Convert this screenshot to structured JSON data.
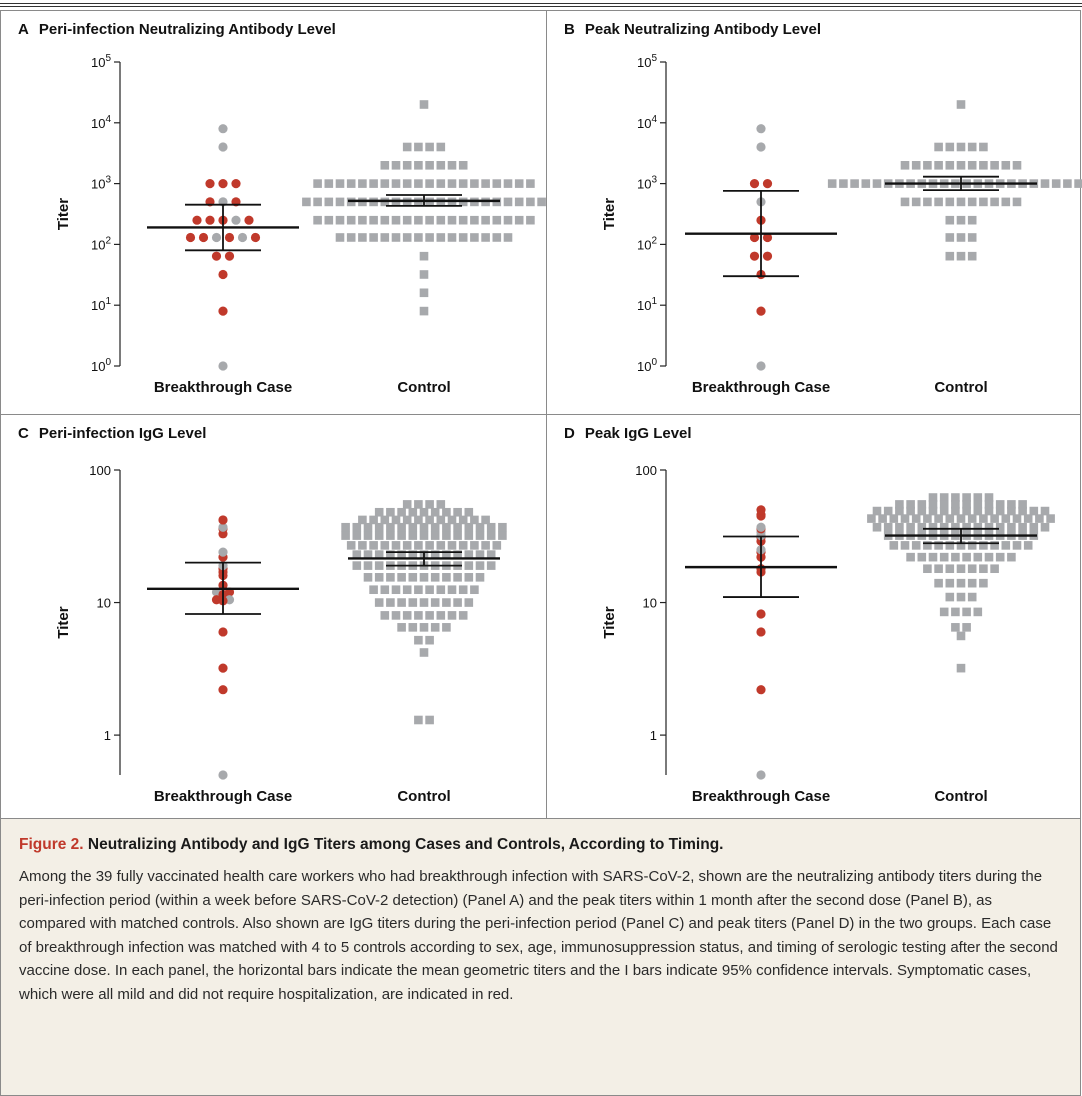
{
  "colors": {
    "symptomatic": "#c0392b",
    "asymptomatic": "#a7a9ac",
    "control": "#a7a9ac",
    "caption_bg": "#f3efe6",
    "figure_number": "#c0392b"
  },
  "chart_data": [
    {
      "panel": "A",
      "title": "Peri-infection Neutralizing Antibody Level",
      "type": "scatter",
      "ylabel": "Titer",
      "yscale": "log",
      "ylim": [
        1,
        100000
      ],
      "yticks": [
        {
          "value": 1,
          "base": "10",
          "exp": "0"
        },
        {
          "value": 10,
          "base": "10",
          "exp": "1"
        },
        {
          "value": 100,
          "base": "10",
          "exp": "2"
        },
        {
          "value": 1000,
          "base": "10",
          "exp": "3"
        },
        {
          "value": 10000,
          "base": "10",
          "exp": "4"
        },
        {
          "value": 100000,
          "base": "10",
          "exp": "5"
        }
      ],
      "categories": [
        "Breakthrough Case",
        "Control"
      ],
      "cases": [
        {
          "y": 8000,
          "sym": false
        },
        {
          "y": 4000,
          "sym": false
        },
        {
          "y": 1000,
          "sym": true
        },
        {
          "y": 1000,
          "sym": true
        },
        {
          "y": 1000,
          "sym": true
        },
        {
          "y": 500,
          "sym": true
        },
        {
          "y": 500,
          "sym": false
        },
        {
          "y": 500,
          "sym": true
        },
        {
          "y": 250,
          "sym": true
        },
        {
          "y": 250,
          "sym": true
        },
        {
          "y": 250,
          "sym": true
        },
        {
          "y": 250,
          "sym": false
        },
        {
          "y": 250,
          "sym": true
        },
        {
          "y": 130,
          "sym": true
        },
        {
          "y": 130,
          "sym": true
        },
        {
          "y": 130,
          "sym": false
        },
        {
          "y": 130,
          "sym": true
        },
        {
          "y": 130,
          "sym": false
        },
        {
          "y": 130,
          "sym": true
        },
        {
          "y": 64,
          "sym": true
        },
        {
          "y": 64,
          "sym": true
        },
        {
          "y": 32,
          "sym": true
        },
        {
          "y": 8,
          "sym": true
        },
        {
          "y": 1,
          "sym": false
        }
      ],
      "controls": [
        {
          "y": 20000,
          "n": 1
        },
        {
          "y": 4000,
          "n": 4
        },
        {
          "y": 2000,
          "n": 8
        },
        {
          "y": 1000,
          "n": 20
        },
        {
          "y": 500,
          "n": 22
        },
        {
          "y": 250,
          "n": 20
        },
        {
          "y": 130,
          "n": 16
        },
        {
          "y": 64,
          "n": 1
        },
        {
          "y": 32,
          "n": 1
        },
        {
          "y": 16,
          "n": 1
        },
        {
          "y": 8,
          "n": 1
        }
      ],
      "case_gmt": {
        "mean": 190,
        "lo": 80,
        "hi": 450
      },
      "control_gmt": {
        "mean": 520,
        "lo": 430,
        "hi": 650
      }
    },
    {
      "panel": "B",
      "title": "Peak Neutralizing Antibody Level",
      "type": "scatter",
      "ylabel": "Titer",
      "yscale": "log",
      "ylim": [
        1,
        100000
      ],
      "yticks": [
        {
          "value": 1,
          "base": "10",
          "exp": "0"
        },
        {
          "value": 10,
          "base": "10",
          "exp": "1"
        },
        {
          "value": 100,
          "base": "10",
          "exp": "2"
        },
        {
          "value": 1000,
          "base": "10",
          "exp": "3"
        },
        {
          "value": 10000,
          "base": "10",
          "exp": "4"
        },
        {
          "value": 100000,
          "base": "10",
          "exp": "5"
        }
      ],
      "categories": [
        "Breakthrough Case",
        "Control"
      ],
      "cases": [
        {
          "y": 8000,
          "sym": false
        },
        {
          "y": 4000,
          "sym": false
        },
        {
          "y": 1000,
          "sym": true
        },
        {
          "y": 1000,
          "sym": true
        },
        {
          "y": 500,
          "sym": false
        },
        {
          "y": 250,
          "sym": true
        },
        {
          "y": 130,
          "sym": true
        },
        {
          "y": 130,
          "sym": true
        },
        {
          "y": 64,
          "sym": true
        },
        {
          "y": 64,
          "sym": true
        },
        {
          "y": 32,
          "sym": true
        },
        {
          "y": 8,
          "sym": true
        },
        {
          "y": 1,
          "sym": false
        }
      ],
      "controls": [
        {
          "y": 20000,
          "n": 1
        },
        {
          "y": 4000,
          "n": 5
        },
        {
          "y": 2000,
          "n": 11
        },
        {
          "y": 1000,
          "n": 24
        },
        {
          "y": 500,
          "n": 11
        },
        {
          "y": 250,
          "n": 3
        },
        {
          "y": 130,
          "n": 3
        },
        {
          "y": 64,
          "n": 3
        }
      ],
      "case_gmt": {
        "mean": 150,
        "lo": 30,
        "hi": 760
      },
      "control_gmt": {
        "mean": 1000,
        "lo": 780,
        "hi": 1300
      }
    },
    {
      "panel": "C",
      "title": "Peri-infection IgG Level",
      "type": "scatter",
      "ylabel": "Titer",
      "yscale": "log",
      "ylim": [
        0.5,
        100
      ],
      "yticks": [
        {
          "value": 1,
          "label": "1"
        },
        {
          "value": 10,
          "label": "10"
        },
        {
          "value": 100,
          "label": "100"
        }
      ],
      "categories": [
        "Breakthrough Case",
        "Control"
      ],
      "cases": [
        {
          "y": 42,
          "sym": true
        },
        {
          "y": 37,
          "sym": false
        },
        {
          "y": 36,
          "sym": true
        },
        {
          "y": 33,
          "sym": true
        },
        {
          "y": 24,
          "sym": false
        },
        {
          "y": 22,
          "sym": true
        },
        {
          "y": 19,
          "sym": false
        },
        {
          "y": 18,
          "sym": true
        },
        {
          "y": 17,
          "sym": true
        },
        {
          "y": 16,
          "sym": true
        },
        {
          "y": 13.5,
          "sym": true
        },
        {
          "y": 12,
          "sym": false
        },
        {
          "y": 12,
          "sym": true
        },
        {
          "y": 11.5,
          "sym": true
        },
        {
          "y": 10.5,
          "sym": true
        },
        {
          "y": 10.5,
          "sym": false
        },
        {
          "y": 10.3,
          "sym": true
        },
        {
          "y": 6,
          "sym": true
        },
        {
          "y": 3.2,
          "sym": true
        },
        {
          "y": 2.2,
          "sym": true
        },
        {
          "y": 0.5,
          "sym": false
        }
      ],
      "controls": [
        {
          "y": 55,
          "n": 4
        },
        {
          "y": 48,
          "n": 9
        },
        {
          "y": 42,
          "n": 12
        },
        {
          "y": 37,
          "n": 15
        },
        {
          "y": 32,
          "n": 15
        },
        {
          "y": 27,
          "n": 14
        },
        {
          "y": 23,
          "n": 13
        },
        {
          "y": 19,
          "n": 13
        },
        {
          "y": 15.5,
          "n": 11
        },
        {
          "y": 12.5,
          "n": 10
        },
        {
          "y": 10,
          "n": 9
        },
        {
          "y": 8,
          "n": 8
        },
        {
          "y": 6.5,
          "n": 5
        },
        {
          "y": 5.2,
          "n": 2
        },
        {
          "y": 4.2,
          "n": 1
        },
        {
          "y": 1.3,
          "n": 2
        }
      ],
      "case_gmt": {
        "mean": 12.7,
        "lo": 8.2,
        "hi": 20
      },
      "control_gmt": {
        "mean": 21.5,
        "lo": 19,
        "hi": 24
      }
    },
    {
      "panel": "D",
      "title": "Peak IgG Level",
      "type": "scatter",
      "ylabel": "Titer",
      "yscale": "log",
      "ylim": [
        0.5,
        100
      ],
      "yticks": [
        {
          "value": 1,
          "label": "1"
        },
        {
          "value": 10,
          "label": "10"
        },
        {
          "value": 100,
          "label": "100"
        }
      ],
      "categories": [
        "Breakthrough Case",
        "Control"
      ],
      "cases": [
        {
          "y": 50,
          "sym": true
        },
        {
          "y": 46,
          "sym": true
        },
        {
          "y": 45,
          "sym": true
        },
        {
          "y": 37,
          "sym": false
        },
        {
          "y": 36,
          "sym": true
        },
        {
          "y": 34,
          "sym": false
        },
        {
          "y": 32,
          "sym": false
        },
        {
          "y": 31,
          "sym": true
        },
        {
          "y": 29,
          "sym": true
        },
        {
          "y": 25,
          "sym": false
        },
        {
          "y": 24,
          "sym": true
        },
        {
          "y": 22,
          "sym": true
        },
        {
          "y": 18,
          "sym": true
        },
        {
          "y": 17,
          "sym": true
        },
        {
          "y": 8.2,
          "sym": true
        },
        {
          "y": 6,
          "sym": true
        },
        {
          "y": 2.2,
          "sym": true
        },
        {
          "y": 0.5,
          "sym": false
        }
      ],
      "controls": [
        {
          "y": 62,
          "n": 6
        },
        {
          "y": 55,
          "n": 12
        },
        {
          "y": 49,
          "n": 16
        },
        {
          "y": 43,
          "n": 17
        },
        {
          "y": 37,
          "n": 16
        },
        {
          "y": 32,
          "n": 14
        },
        {
          "y": 27,
          "n": 13
        },
        {
          "y": 22,
          "n": 10
        },
        {
          "y": 18,
          "n": 7
        },
        {
          "y": 14,
          "n": 5
        },
        {
          "y": 11,
          "n": 3
        },
        {
          "y": 8.5,
          "n": 4
        },
        {
          "y": 6.5,
          "n": 2
        },
        {
          "y": 5.6,
          "n": 1
        },
        {
          "y": 3.2,
          "n": 1
        }
      ],
      "case_gmt": {
        "mean": 18.5,
        "lo": 11,
        "hi": 31.5
      },
      "control_gmt": {
        "mean": 32,
        "lo": 28,
        "hi": 36
      }
    }
  ],
  "caption": {
    "figure_number": "Figure 2.",
    "title": "Neutralizing Antibody and IgG Titers among Cases and Controls, According to Timing.",
    "body": "Among the 39 fully vaccinated health care workers who had breakthrough infection with SARS-CoV-2, shown are the neutralizing antibody titers during the peri-infection period (within a week before SARS-CoV-2 detection) (Panel A) and the peak titers within 1 month after the second dose (Panel B), as compared with matched controls. Also shown are IgG titers during the peri-infection period (Panel C) and peak titers (Panel D) in the two groups. Each case of breakthrough infection was matched with 4 to 5 controls according to sex, age, immunosuppression status, and timing of serologic testing after the second vaccine dose. In each panel, the horizontal bars indicate the mean geometric titers and the I bars indicate 95% confidence intervals. Symptomatic cases, which were all mild and did not require hospitalization, are indicated in red."
  }
}
